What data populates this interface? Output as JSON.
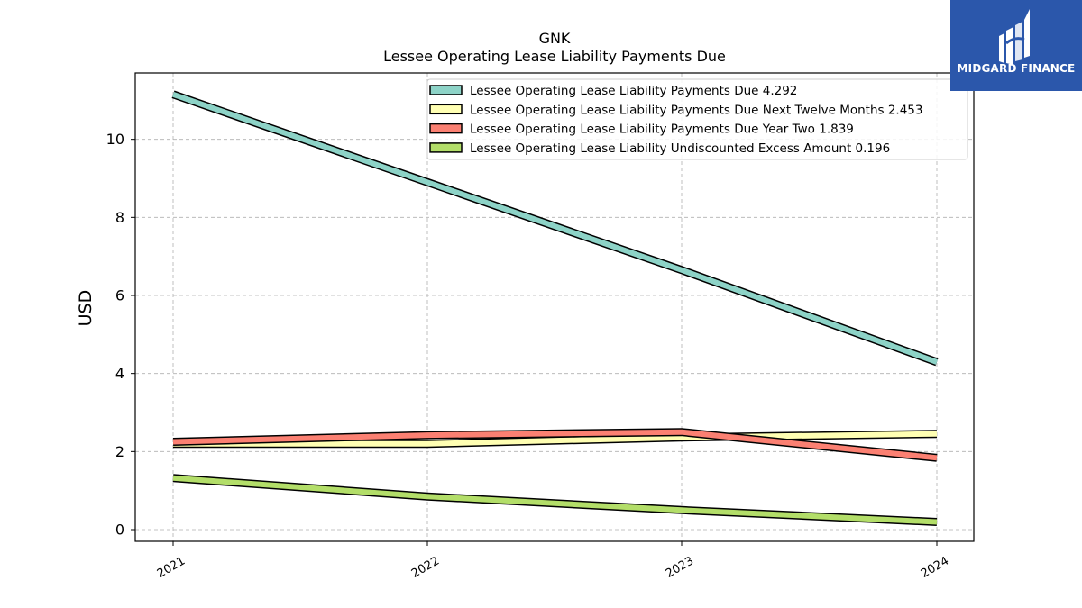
{
  "chart_data": {
    "type": "line",
    "title": "GNK",
    "subtitle": "Lessee Operating Lease Liability Payments Due",
    "xlabel": "",
    "ylabel": "USD",
    "categories": [
      "2021",
      "2022",
      "2023",
      "2024"
    ],
    "ylim": [
      -0.3,
      11.7
    ],
    "yticks": [
      0,
      2,
      4,
      6,
      8,
      10
    ],
    "grid": true,
    "legend_position": "top-right",
    "series": [
      {
        "name": "Lessee Operating Lease Liability Payments Due  4.292",
        "values": [
          11.15,
          8.9,
          6.65,
          4.292
        ],
        "color": "#8dd3c7"
      },
      {
        "name": "Lessee Operating Lease Liability Payments Due Next Twelve Months  2.453",
        "values": [
          2.2,
          2.2,
          2.36,
          2.453
        ],
        "color": "#ffffb3"
      },
      {
        "name": "Lessee Operating Lease Liability Payments Due Year Two  1.839",
        "values": [
          2.25,
          2.42,
          2.5,
          1.839
        ],
        "color": "#fb8072"
      },
      {
        "name": "Lessee Operating Lease Liability Undiscounted Excess Amount  0.196",
        "values": [
          1.32,
          0.85,
          0.5,
          0.196
        ],
        "color": "#b3de69"
      }
    ]
  },
  "logo": {
    "text": "MIDGARD FINANCE",
    "background": "#2b57ab"
  }
}
